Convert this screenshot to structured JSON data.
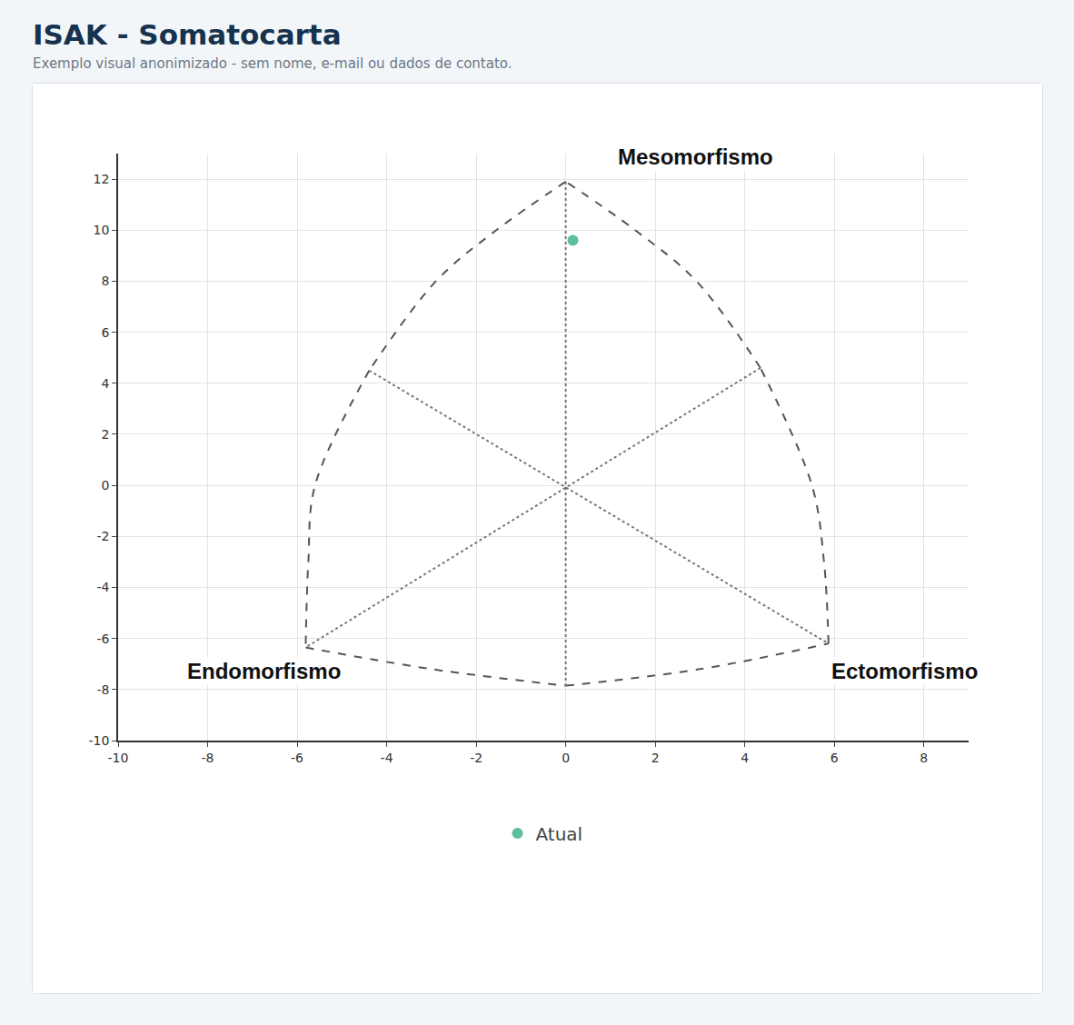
{
  "chart_data": {
    "type": "scatter",
    "title": "ISAK - Somatocarta",
    "subtitle": "Exemplo visual anonimizado - sem nome, e-mail ou dados de contato.",
    "series": [
      {
        "name": "Atual",
        "color": "#5cbf9b",
        "marker": "circle",
        "x": [
          0.16
        ],
        "values": [
          9.6
        ]
      }
    ],
    "xlim": [
      -10,
      9
    ],
    "xticks": [
      -10,
      -8,
      -6,
      -4,
      -2,
      0,
      2,
      4,
      6,
      8
    ],
    "ylim": [
      -10,
      13
    ],
    "yticks": [
      -10,
      -8,
      -6,
      -4,
      -2,
      0,
      2,
      4,
      6,
      8,
      10,
      12
    ],
    "grid": true,
    "legend": "bottom",
    "annotations": [
      {
        "text": "Mesomorfismo",
        "x": 2.9,
        "y": 12.87
      },
      {
        "text": "Endomorfismo",
        "x": -6.75,
        "y": -7.27
      },
      {
        "text": "Ectomorfismo",
        "x": 7.56,
        "y": -7.27
      }
    ],
    "outline": [
      {
        "x": [
          0,
          -1.55,
          -2.9,
          -4.39
        ],
        "y": [
          11.9,
          10,
          8,
          4.5
        ]
      },
      {
        "x": [
          -4.39,
          -5.6,
          -5.75,
          -5.81
        ],
        "y": [
          4.5,
          0,
          -3,
          -6.35
        ]
      },
      {
        "x": [
          -5.81,
          -3,
          0
        ],
        "y": [
          -6.35,
          -7.2,
          -7.85
        ]
      },
      {
        "x": [
          0,
          3,
          5.87
        ],
        "y": [
          -7.85,
          -7.2,
          -6.2
        ]
      },
      {
        "x": [
          5.87,
          5.77,
          5.5,
          4.35
        ],
        "y": [
          -6.2,
          -3,
          0,
          4.6
        ]
      },
      {
        "x": [
          4.35,
          2.92,
          1.55,
          0
        ],
        "y": [
          4.6,
          8,
          10,
          11.9
        ]
      }
    ],
    "axis_lines": [
      {
        "x": [
          0,
          0
        ],
        "y": [
          11.9,
          -7.85
        ]
      },
      {
        "x": [
          -4.39,
          5.87
        ],
        "y": [
          4.5,
          -6.2
        ]
      },
      {
        "x": [
          4.35,
          -5.81
        ],
        "y": [
          4.6,
          -6.35
        ]
      }
    ]
  }
}
